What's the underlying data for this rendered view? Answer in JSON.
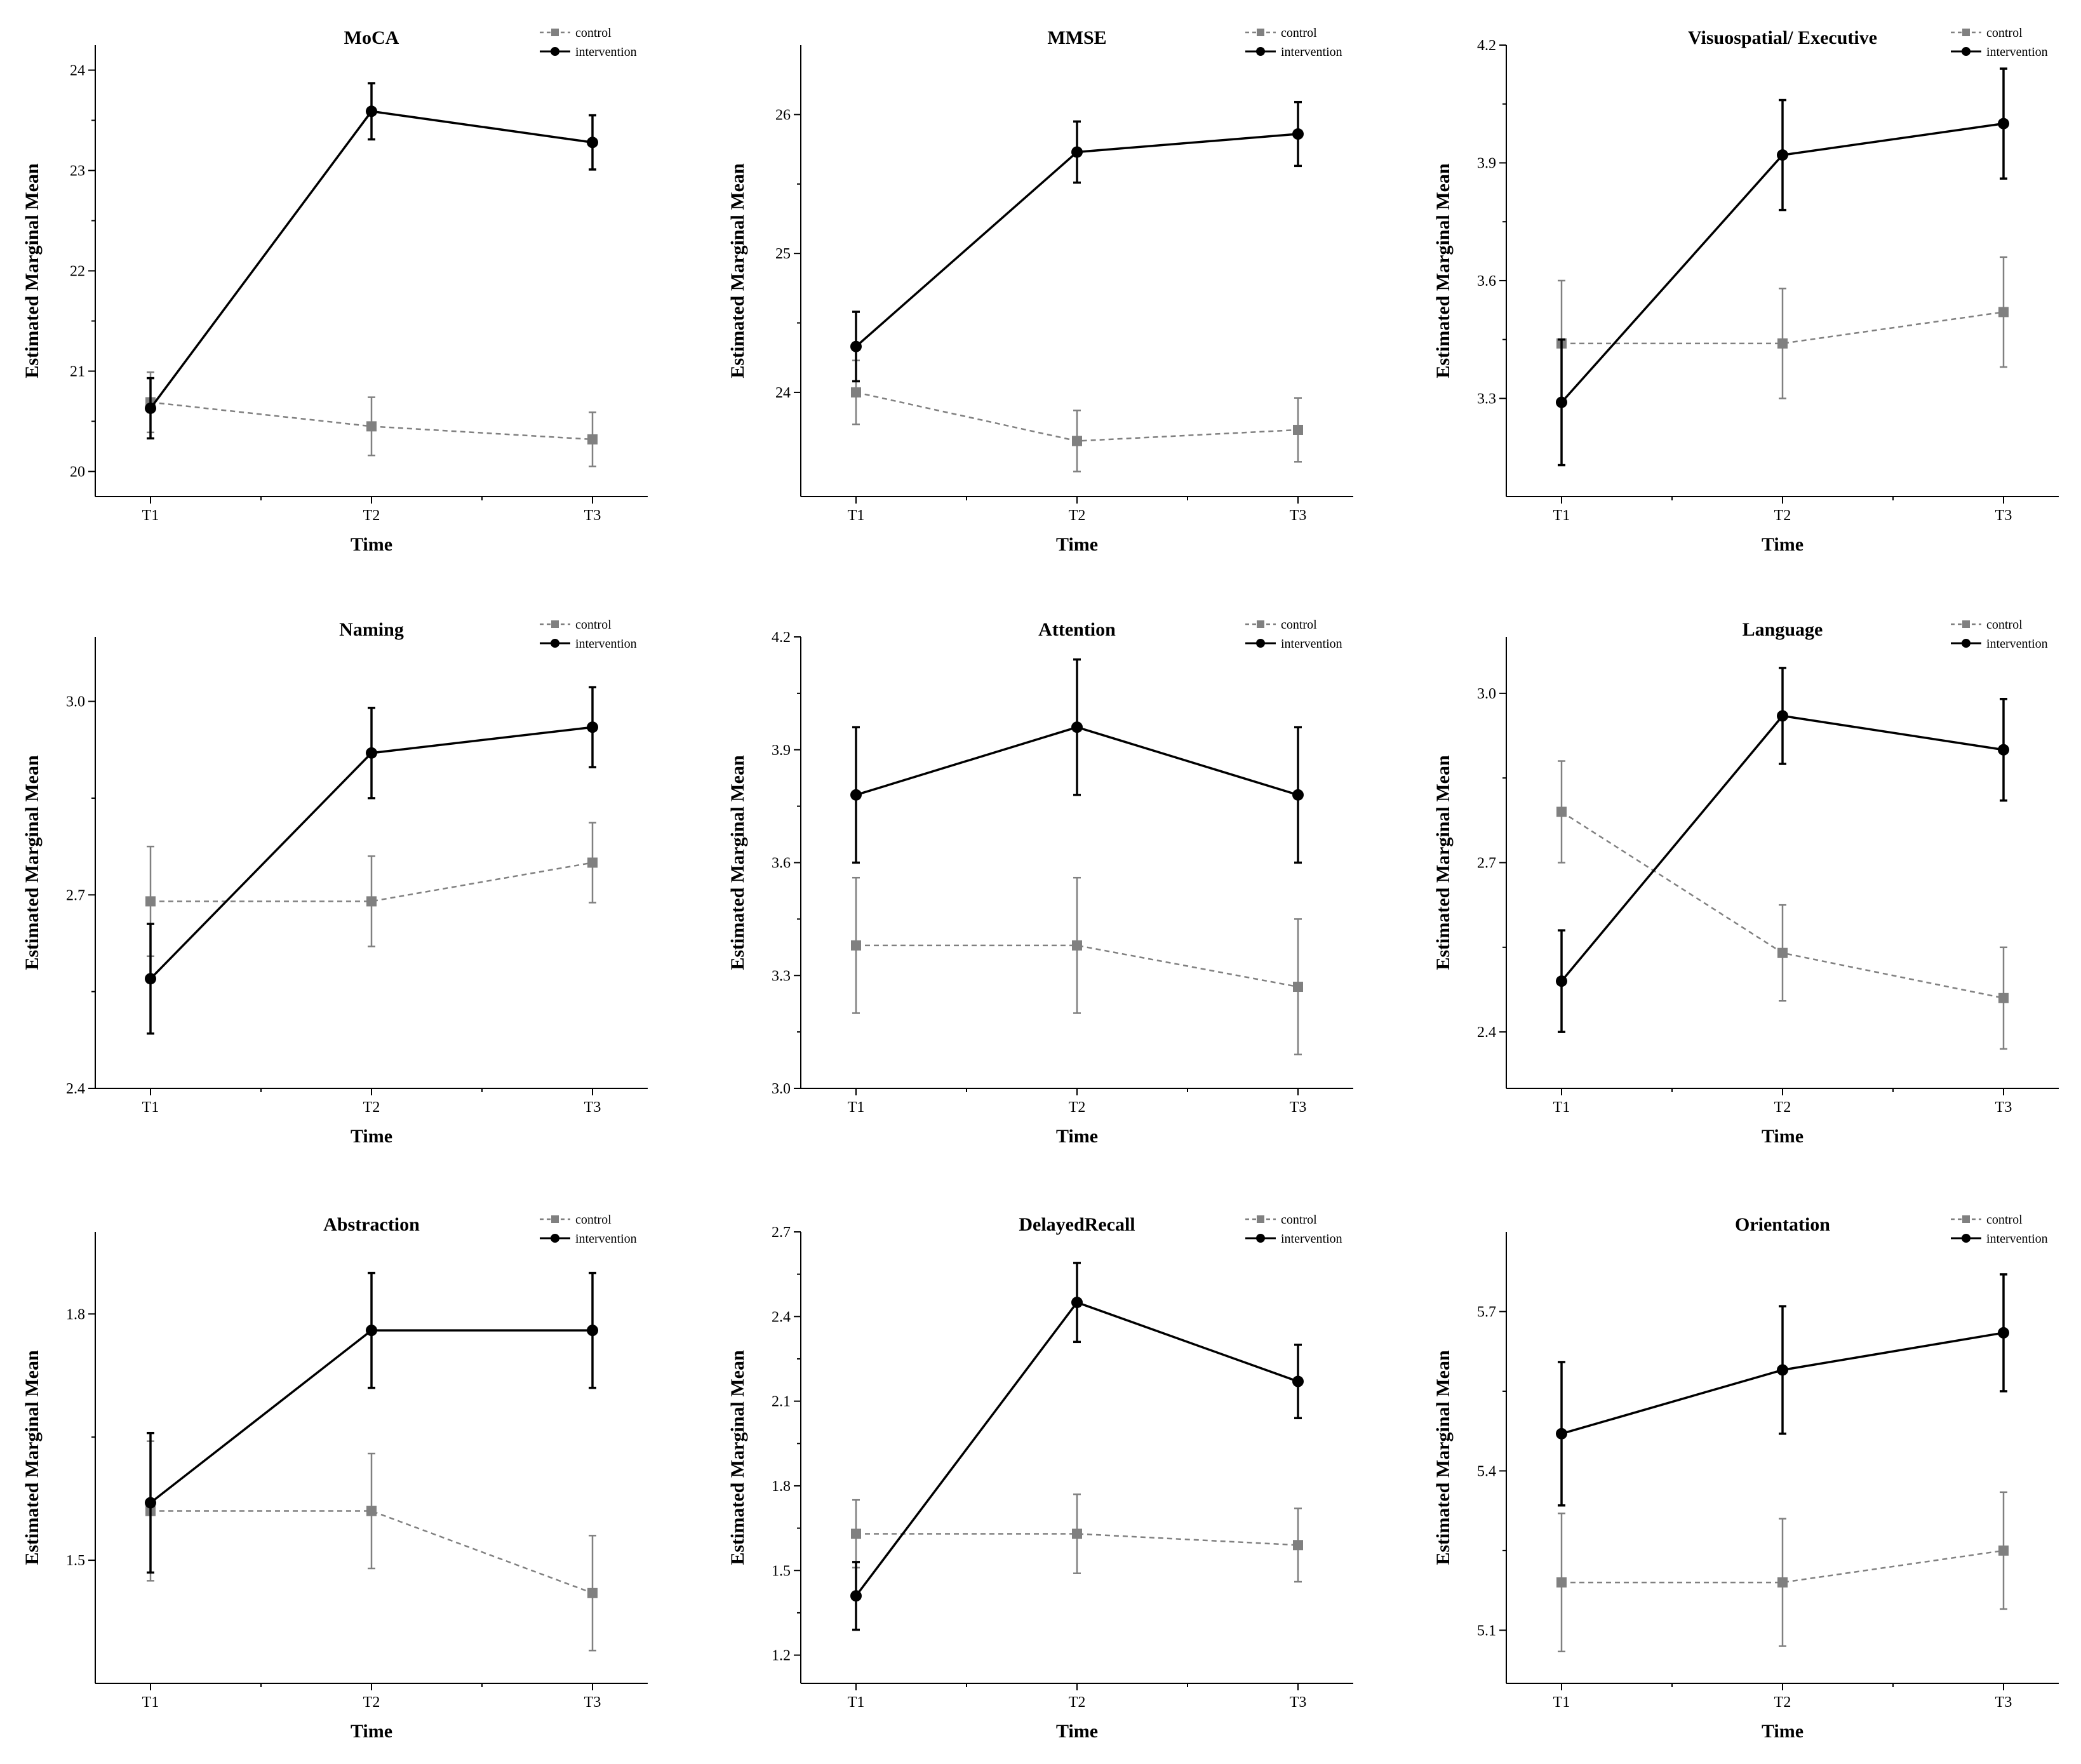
{
  "figure": {
    "xlabel": "Time",
    "ylabel": "Estimated Marginal Mean",
    "legend": {
      "control": "control",
      "intervention": "intervention"
    },
    "colors": {
      "control": "#808080",
      "intervention": "#000000"
    }
  },
  "chart_data": [
    {
      "type": "line",
      "title": "MoCA",
      "xlabel": "Time",
      "ylabel": "Estimated Marginal Mean",
      "categories": [
        "T1",
        "T2",
        "T3"
      ],
      "ylim": [
        19.75,
        24.25
      ],
      "yticks": [
        20,
        21,
        22,
        23,
        24
      ],
      "tick_decimals": 0,
      "series": [
        {
          "name": "control",
          "values": [
            20.69,
            20.45,
            20.32
          ],
          "errors": [
            0.3,
            0.29,
            0.27
          ]
        },
        {
          "name": "intervention",
          "values": [
            20.63,
            23.59,
            23.28
          ],
          "errors": [
            0.3,
            0.28,
            0.27
          ]
        }
      ]
    },
    {
      "type": "line",
      "title": "MMSE",
      "xlabel": "Time",
      "ylabel": "Estimated Marginal Mean",
      "categories": [
        "T1",
        "T2",
        "T3"
      ],
      "ylim": [
        23.25,
        26.5
      ],
      "yticks": [
        24,
        25,
        26
      ],
      "tick_decimals": 0,
      "series": [
        {
          "name": "control",
          "values": [
            24.0,
            23.65,
            23.73
          ],
          "errors": [
            0.23,
            0.22,
            0.23
          ]
        },
        {
          "name": "intervention",
          "values": [
            24.33,
            25.73,
            25.86
          ],
          "errors": [
            0.25,
            0.22,
            0.23
          ]
        }
      ]
    },
    {
      "type": "line",
      "title": "Visuospatial/ Executive",
      "xlabel": "Time",
      "ylabel": "Estimated Marginal Mean",
      "categories": [
        "T1",
        "T2",
        "T3"
      ],
      "ylim": [
        3.05,
        4.2
      ],
      "yticks": [
        3.3,
        3.6,
        3.9,
        4.2
      ],
      "tick_decimals": 1,
      "series": [
        {
          "name": "control",
          "values": [
            3.44,
            3.44,
            3.52
          ],
          "errors": [
            0.16,
            0.14,
            0.14
          ]
        },
        {
          "name": "intervention",
          "values": [
            3.29,
            3.92,
            4.0
          ],
          "errors": [
            0.16,
            0.14,
            0.14
          ]
        }
      ]
    },
    {
      "type": "line",
      "title": "Naming",
      "xlabel": "Time",
      "ylabel": "Estimated Marginal Mean",
      "categories": [
        "T1",
        "T2",
        "T3"
      ],
      "ylim": [
        2.4,
        3.1
      ],
      "yticks": [
        2.4,
        2.7,
        3.0
      ],
      "tick_decimals": 1,
      "series": [
        {
          "name": "control",
          "values": [
            2.69,
            2.69,
            2.75
          ],
          "errors": [
            0.085,
            0.07,
            0.062
          ]
        },
        {
          "name": "intervention",
          "values": [
            2.57,
            2.92,
            2.96
          ],
          "errors": [
            0.085,
            0.07,
            0.062
          ]
        }
      ]
    },
    {
      "type": "line",
      "title": "Attention",
      "xlabel": "Time",
      "ylabel": "Estimated Marginal Mean",
      "categories": [
        "T1",
        "T2",
        "T3"
      ],
      "ylim": [
        3.0,
        4.2
      ],
      "yticks": [
        3.0,
        3.3,
        3.6,
        3.9,
        4.2
      ],
      "tick_decimals": 1,
      "series": [
        {
          "name": "control",
          "values": [
            3.38,
            3.38,
            3.27
          ],
          "errors": [
            0.18,
            0.18,
            0.18
          ]
        },
        {
          "name": "intervention",
          "values": [
            3.78,
            3.96,
            3.78
          ],
          "errors": [
            0.18,
            0.18,
            0.18
          ]
        }
      ]
    },
    {
      "type": "line",
      "title": "Language",
      "xlabel": "Time",
      "ylabel": "Estimated Marginal Mean",
      "categories": [
        "T1",
        "T2",
        "T3"
      ],
      "ylim": [
        2.3,
        3.1
      ],
      "yticks": [
        2.4,
        2.7,
        3.0
      ],
      "tick_decimals": 1,
      "series": [
        {
          "name": "control",
          "values": [
            2.79,
            2.54,
            2.46
          ],
          "errors": [
            0.09,
            0.085,
            0.09
          ]
        },
        {
          "name": "intervention",
          "values": [
            2.49,
            2.96,
            2.9
          ],
          "errors": [
            0.09,
            0.085,
            0.09
          ]
        }
      ]
    },
    {
      "type": "line",
      "title": "Abstraction",
      "xlabel": "Time",
      "ylabel": "Estimated Marginal Mean",
      "categories": [
        "T1",
        "T2",
        "T3"
      ],
      "ylim": [
        1.35,
        1.9
      ],
      "yticks": [
        1.5,
        1.8
      ],
      "tick_decimals": 1,
      "series": [
        {
          "name": "control",
          "values": [
            1.56,
            1.56,
            1.46
          ],
          "errors": [
            0.085,
            0.07,
            0.07
          ]
        },
        {
          "name": "intervention",
          "values": [
            1.57,
            1.78,
            1.78
          ],
          "errors": [
            0.085,
            0.07,
            0.07
          ]
        }
      ]
    },
    {
      "type": "line",
      "title": "DelayedRecall",
      "xlabel": "Time",
      "ylabel": "Estimated Marginal Mean",
      "categories": [
        "T1",
        "T2",
        "T3"
      ],
      "ylim": [
        1.1,
        2.7
      ],
      "yticks": [
        1.2,
        1.5,
        1.8,
        2.1,
        2.4,
        2.7
      ],
      "tick_decimals": 1,
      "series": [
        {
          "name": "control",
          "values": [
            1.63,
            1.63,
            1.59
          ],
          "errors": [
            0.12,
            0.14,
            0.13
          ]
        },
        {
          "name": "intervention",
          "values": [
            1.41,
            2.45,
            2.17
          ],
          "errors": [
            0.12,
            0.14,
            0.13
          ]
        }
      ]
    },
    {
      "type": "line",
      "title": "Orientation",
      "xlabel": "Time",
      "ylabel": "Estimated Marginal Mean",
      "categories": [
        "T1",
        "T2",
        "T3"
      ],
      "ylim": [
        5.0,
        5.85
      ],
      "yticks": [
        5.1,
        5.4,
        5.7
      ],
      "tick_decimals": 1,
      "series": [
        {
          "name": "control",
          "values": [
            5.19,
            5.19,
            5.25
          ],
          "errors": [
            0.13,
            0.12,
            0.11
          ]
        },
        {
          "name": "intervention",
          "values": [
            5.47,
            5.59,
            5.66
          ],
          "errors": [
            0.135,
            0.12,
            0.11
          ]
        }
      ]
    }
  ]
}
